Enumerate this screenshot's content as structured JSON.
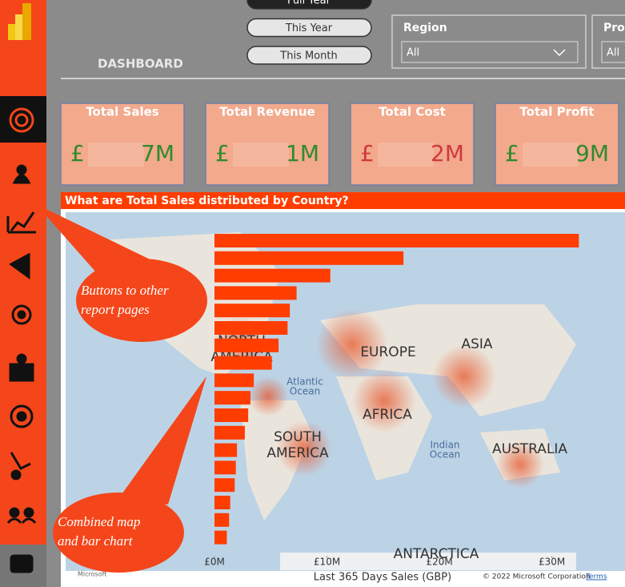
{
  "header": {
    "title": "DASHBOARD"
  },
  "period_buttons": [
    "Full Year",
    "This Year",
    "This Month"
  ],
  "slicers": [
    {
      "label": "Region",
      "value": "All"
    },
    {
      "label": "Pro",
      "value": "All"
    }
  ],
  "kpis": [
    {
      "title": "Total Sales",
      "prefix": "£",
      "suffix": "7M",
      "color": "#2e8b2e"
    },
    {
      "title": "Total Revenue",
      "prefix": "£",
      "suffix": "1M",
      "color": "#2e8b2e"
    },
    {
      "title": "Total Cost",
      "prefix": "£",
      "suffix": "2M",
      "color": "#d0393e"
    },
    {
      "title": "Total Profit",
      "prefix": "£",
      "suffix": "9M",
      "color": "#2e8b2e"
    }
  ],
  "chart_data": {
    "type": "bar",
    "orientation": "horizontal",
    "title": "What are Total Sales distributed by Country?",
    "xlabel": "Last 365 Days Sales (GBP)",
    "categories": [
      null,
      null,
      null,
      null,
      null,
      null,
      null,
      null,
      null,
      null,
      null,
      null,
      null,
      null,
      null,
      null,
      null,
      null
    ],
    "values": [
      32400000,
      16800000,
      10300000,
      7300000,
      6700000,
      6500000,
      5700000,
      5100000,
      3500000,
      3200000,
      3000000,
      2700000,
      2000000,
      1900000,
      1800000,
      1400000,
      1300000,
      1100000
    ],
    "color": "#ff3d00",
    "xlim": [
      0,
      36000000
    ],
    "xticks": [
      {
        "value": 0,
        "label": "£0M"
      },
      {
        "value": 10000000,
        "label": "£10M"
      },
      {
        "value": 20000000,
        "label": "£20M"
      },
      {
        "value": 30000000,
        "label": "£30M"
      }
    ]
  },
  "map_labels": [
    [
      "NORTH",
      "AMERICA"
    ],
    [
      "EUROPE"
    ],
    [
      "ASIA"
    ],
    [
      "Atlantic",
      "Ocean"
    ],
    [
      "AFRICA"
    ],
    [
      "SOUTH",
      "AMERICA"
    ],
    [
      "Indian",
      "Ocean"
    ],
    [
      "AUSTRALIA"
    ],
    [
      "ANTARCTICA"
    ]
  ],
  "map_attribution": {
    "brand": "Microsoft",
    "copyright": "© 2022 Microsoft Corporation",
    "terms": "Terms"
  },
  "annotations": [
    [
      "Buttons to other",
      "report pages"
    ],
    [
      "Combined map",
      "and bar chart"
    ]
  ]
}
